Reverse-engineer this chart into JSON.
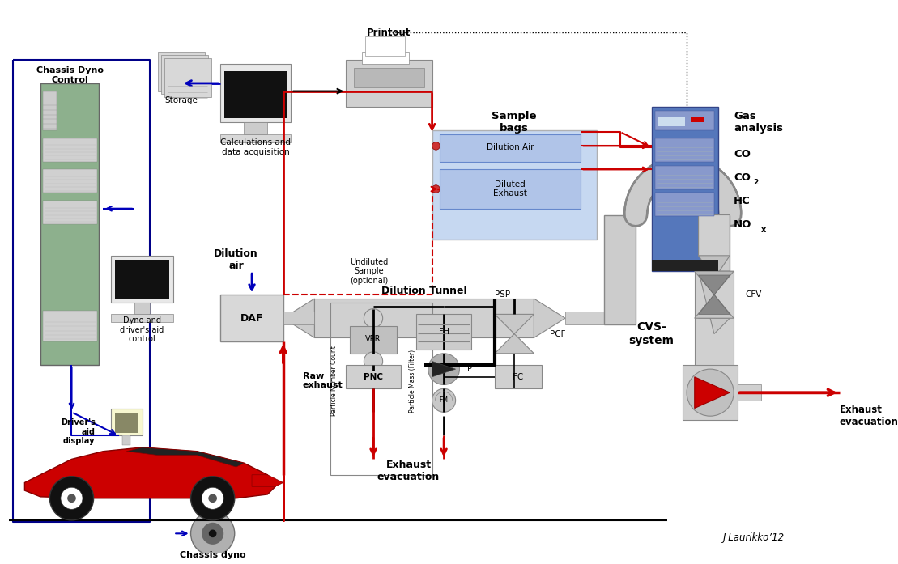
{
  "background_color": "#ffffff",
  "fig_width": 11.09,
  "fig_height": 6.97,
  "dpi": 100,
  "labels": {
    "chassis_dyno_control": "Chassis Dyno\nControl",
    "dyno_driver_aid": "Dyno and\ndriver's aid\ncontrol",
    "drivers_aid_display": "Driver's\naid\ndisplay",
    "storage": "Storage",
    "calculations": "Calculations and\ndata acquisition",
    "printout": "Printout",
    "dilution_air_top": "Dilution\nair",
    "daf": "DAF",
    "dilution_tunnel": "Dilution Tunnel",
    "sample_bags": "Sample\nbags",
    "dilution_air_bag": "Dilution Air",
    "diluted_exhaust": "Diluted\nExhaust",
    "undiluted_sample": "Undiluted\nSample\n(optional)",
    "gas_analysis": "Gas\nanalysis",
    "co": "CO",
    "co2": "CO",
    "co2_sub": "2",
    "hc": "HC",
    "nox": "NO",
    "nox_sub": "x",
    "psp": "PSP",
    "pcf": "PCF",
    "fc": "FC",
    "particle_number_count": "Particle Number Count",
    "particle_mass_filter": "Particle Mass (Filter)",
    "vpr": "VPR",
    "pnc": "PNC",
    "fh": "FH",
    "p": "P",
    "fm": "FM",
    "cvs_system": "CVS-\nsystem",
    "cfv": "CFV",
    "raw_exhaust": "Raw\nexhaust",
    "exhaust_evacuation": "Exhaust\nevacuation",
    "exhaust_evacuation2": "Exhaust\nevacuation",
    "chassis_dyno": "Chassis dyno",
    "signature": "J Laurikko’12"
  },
  "colors": {
    "red": "#cc0000",
    "dark_red": "#990000",
    "blue": "#0000aa",
    "navy": "#000088",
    "gray_light": "#d8d8d8",
    "gray_medium": "#b0b0b0",
    "gray_dark": "#888888",
    "gray_darker": "#555555",
    "green_panel": "#8db08d",
    "blue_rack": "#5577bb",
    "light_blue_bag": "#c0d4f0",
    "black": "#000000",
    "white": "#ffffff",
    "yellow_cream": "#f8f8d0",
    "arrow_blue": "#0000bb",
    "arrow_red": "#cc0000",
    "dark_gray_pipe": "#808080"
  }
}
